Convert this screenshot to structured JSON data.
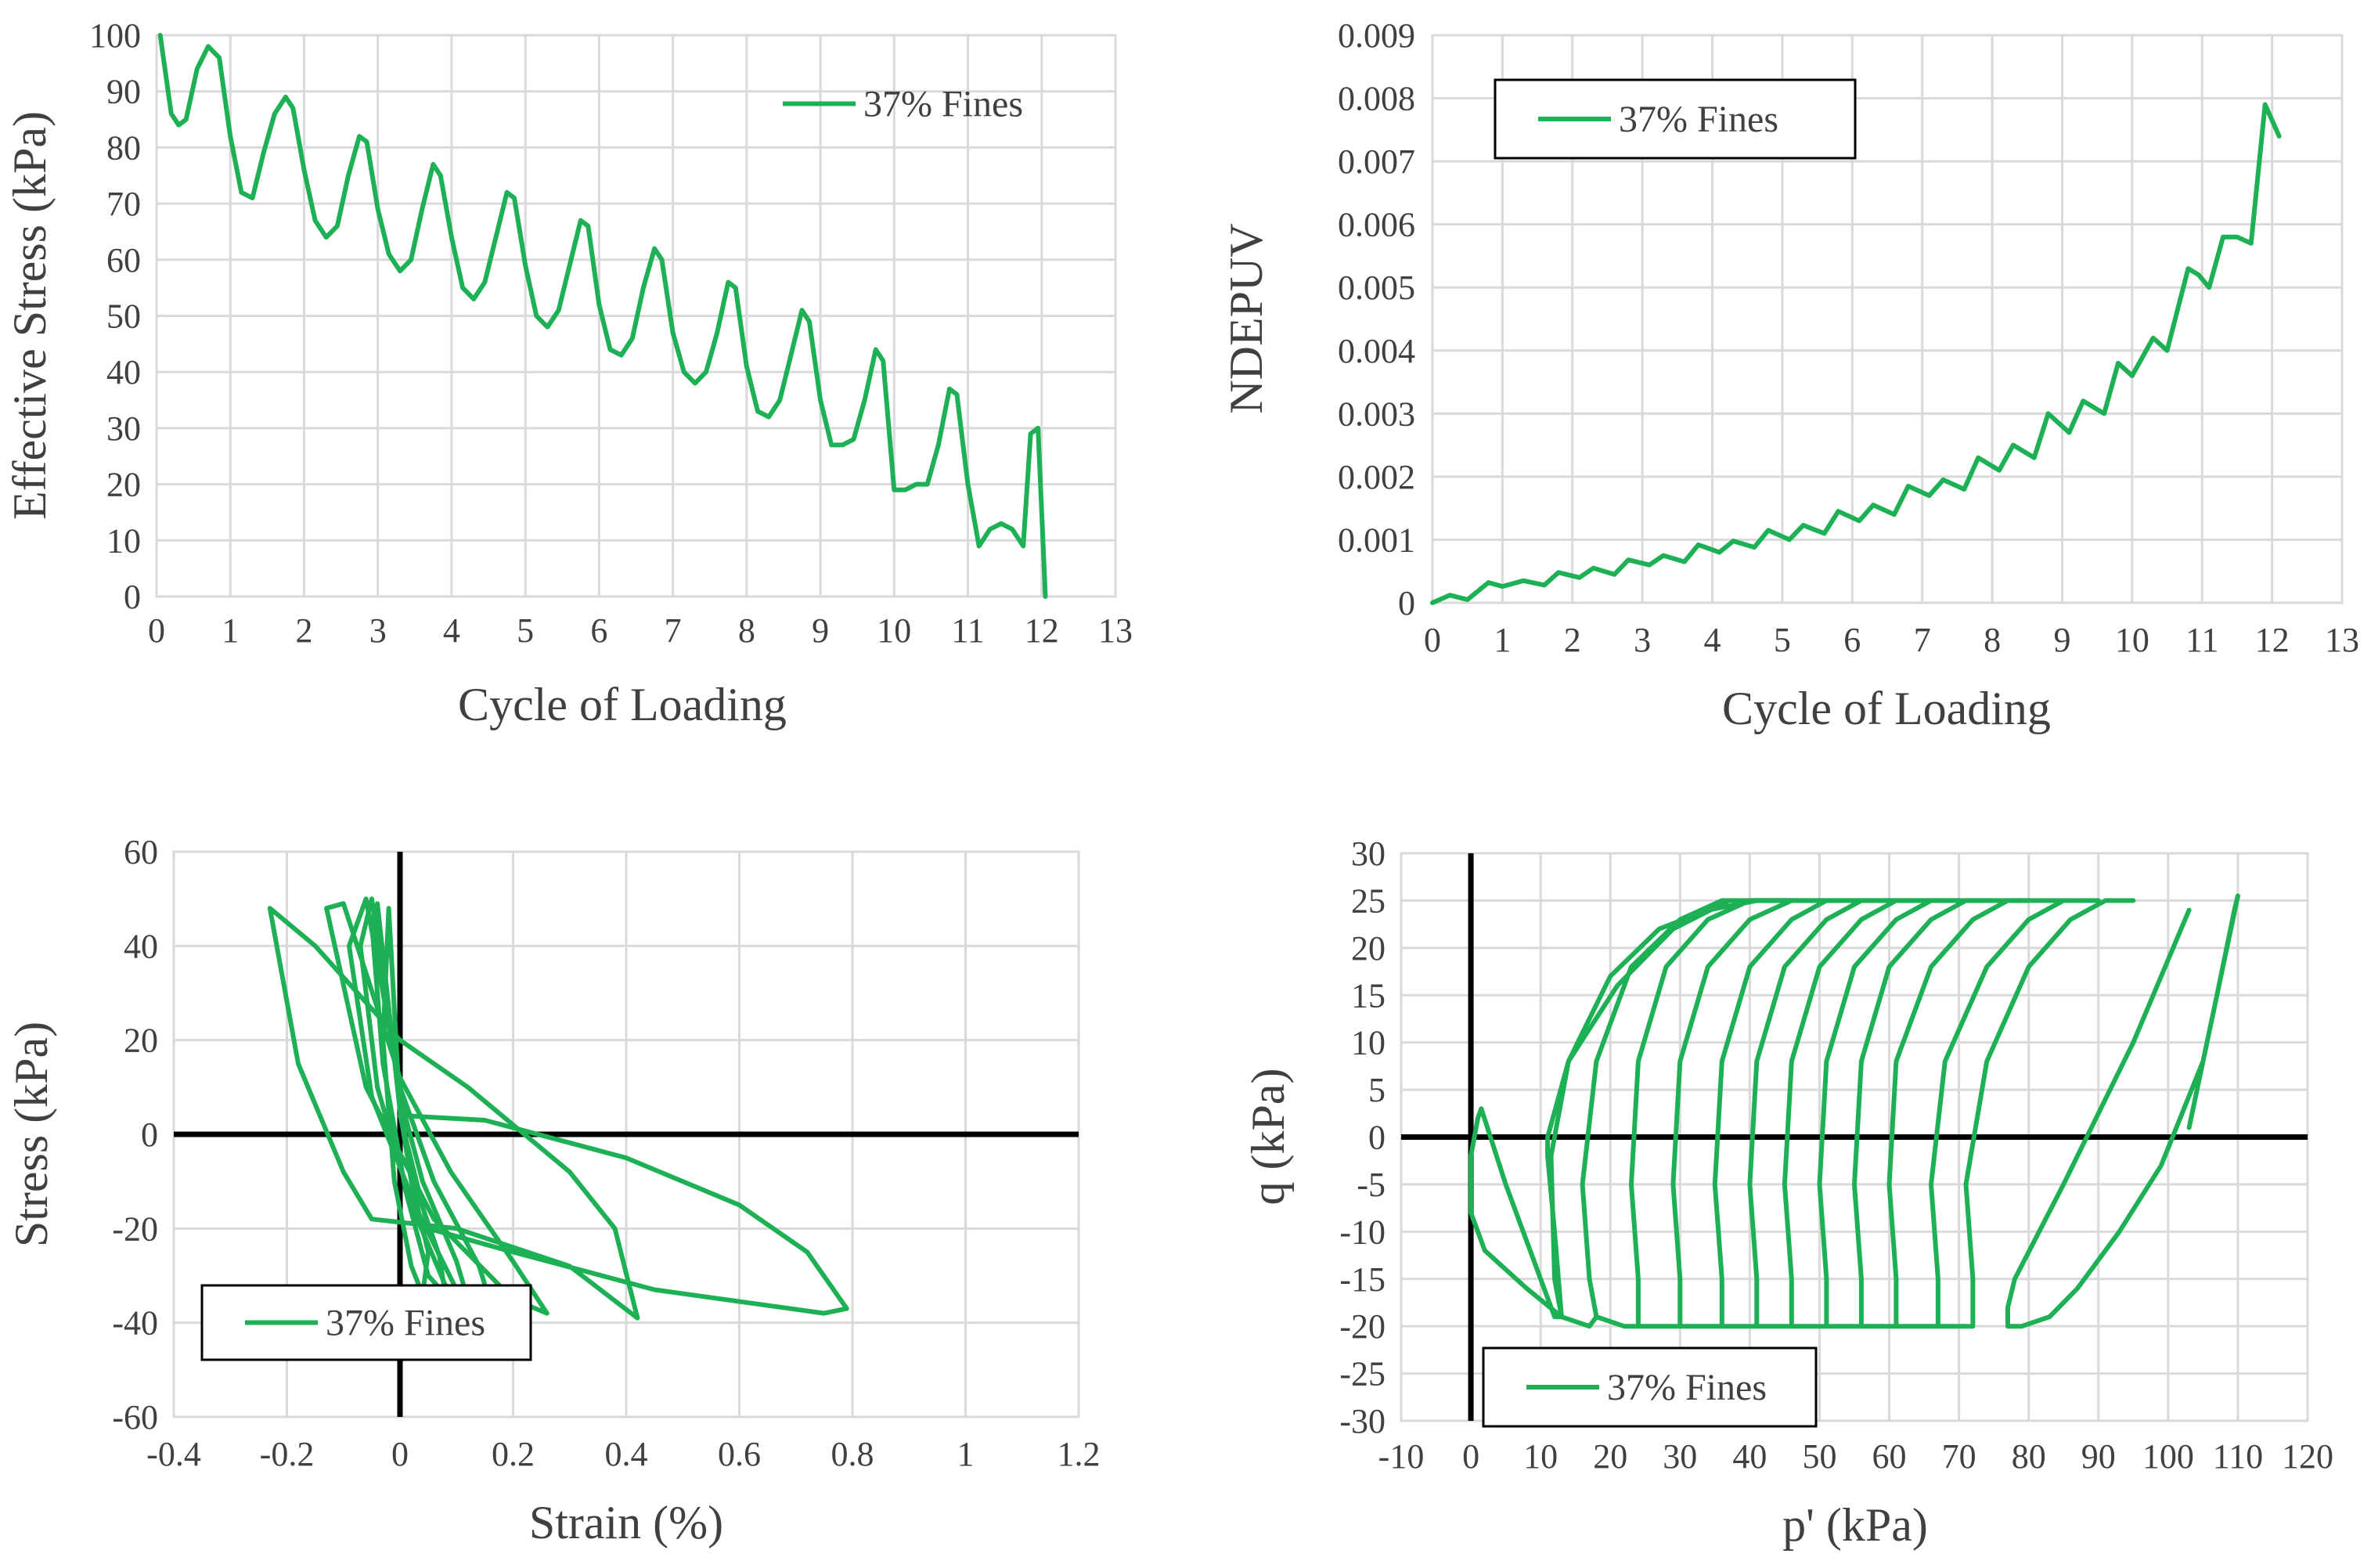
{
  "figure": {
    "legend_label": "37% Fines",
    "series_color": "#1DB055",
    "grid_color": "#D9D9D9",
    "axis_color": "#000000"
  },
  "chart_data": [
    {
      "id": "c1",
      "type": "line",
      "xlabel": "Cycle of Loading",
      "ylabel": "Effective Stress (kPa)",
      "xlim": [
        0,
        13
      ],
      "ylim": [
        0,
        100
      ],
      "xticks": [
        0,
        1,
        2,
        3,
        4,
        5,
        6,
        7,
        8,
        9,
        10,
        11,
        12,
        13
      ],
      "yticks": [
        0,
        10,
        20,
        30,
        40,
        50,
        60,
        70,
        80,
        90,
        100
      ],
      "grid_x": true,
      "grid_y": true,
      "legend": {
        "label": "37% Fines",
        "placement": "top-right",
        "boxed": false
      },
      "series": [
        {
          "name": "37% Fines",
          "x": [
            0.05,
            0.2,
            0.3,
            0.4,
            0.55,
            0.7,
            0.85,
            1.0,
            1.15,
            1.3,
            1.45,
            1.6,
            1.75,
            1.85,
            2.0,
            2.15,
            2.3,
            2.45,
            2.6,
            2.75,
            2.85,
            3.0,
            3.15,
            3.3,
            3.45,
            3.6,
            3.75,
            3.85,
            4.0,
            4.15,
            4.3,
            4.45,
            4.6,
            4.75,
            4.85,
            5.0,
            5.15,
            5.3,
            5.45,
            5.6,
            5.75,
            5.85,
            6.0,
            6.15,
            6.3,
            6.45,
            6.6,
            6.75,
            6.85,
            7.0,
            7.15,
            7.3,
            7.45,
            7.6,
            7.75,
            7.85,
            8.0,
            8.15,
            8.3,
            8.45,
            8.6,
            8.75,
            8.85,
            9.0,
            9.15,
            9.3,
            9.45,
            9.6,
            9.75,
            9.85,
            10.0,
            10.15,
            10.3,
            10.45,
            10.6,
            10.75,
            10.85,
            11.0,
            11.15,
            11.3,
            11.45,
            11.6,
            11.75,
            11.85,
            11.95,
            12.05
          ],
          "y": [
            100,
            86,
            84,
            85,
            94,
            98,
            96,
            82,
            72,
            71,
            79,
            86,
            89,
            87,
            76,
            67,
            64,
            66,
            75,
            82,
            81,
            69,
            61,
            58,
            60,
            69,
            77,
            75,
            64,
            55,
            53,
            56,
            64,
            72,
            71,
            59,
            50,
            48,
            51,
            59,
            67,
            66,
            52,
            44,
            43,
            46,
            55,
            62,
            60,
            47,
            40,
            38,
            40,
            47,
            56,
            55,
            41,
            33,
            32,
            35,
            43,
            51,
            49,
            35,
            27,
            27,
            28,
            35,
            44,
            42,
            19,
            19,
            20,
            20,
            27,
            37,
            36,
            20,
            9,
            12,
            13,
            12,
            9,
            29,
            30,
            0
          ]
        }
      ]
    },
    {
      "id": "c2",
      "type": "line",
      "xlabel": "Cycle of Loading",
      "ylabel": "NDEPUV",
      "xlim": [
        0,
        13
      ],
      "ylim": [
        0,
        0.009
      ],
      "xticks": [
        0,
        1,
        2,
        3,
        4,
        5,
        6,
        7,
        8,
        9,
        10,
        11,
        12,
        13
      ],
      "yticks": [
        "0",
        "0.001",
        "0.002",
        "0.003",
        "0.004",
        "0.005",
        "0.006",
        "0.007",
        "0.008",
        "0.009"
      ],
      "grid_x": true,
      "grid_y": true,
      "legend": {
        "label": "37% Fines",
        "placement": "top-left",
        "boxed": true
      },
      "series": [
        {
          "name": "37% Fines",
          "x": [
            0,
            0.25,
            0.5,
            0.8,
            1.0,
            1.3,
            1.6,
            1.8,
            2.1,
            2.3,
            2.6,
            2.8,
            3.1,
            3.3,
            3.6,
            3.8,
            4.1,
            4.3,
            4.6,
            4.8,
            5.1,
            5.3,
            5.6,
            5.8,
            6.1,
            6.3,
            6.6,
            6.8,
            7.1,
            7.3,
            7.6,
            7.8,
            8.1,
            8.3,
            8.6,
            8.8,
            9.1,
            9.3,
            9.6,
            9.8,
            10.0,
            10.3,
            10.5,
            10.8,
            10.95,
            11.1,
            11.3,
            11.5,
            11.7,
            11.9,
            12.1
          ],
          "y": [
            0,
            0.00012,
            5e-05,
            0.00032,
            0.00026,
            0.00035,
            0.00028,
            0.00048,
            0.0004,
            0.00055,
            0.00045,
            0.00068,
            0.0006,
            0.00075,
            0.00065,
            0.00092,
            0.0008,
            0.00098,
            0.00088,
            0.00115,
            0.001,
            0.00123,
            0.0011,
            0.00145,
            0.0013,
            0.00155,
            0.0014,
            0.00185,
            0.0017,
            0.00195,
            0.0018,
            0.0023,
            0.0021,
            0.0025,
            0.0023,
            0.003,
            0.0027,
            0.0032,
            0.003,
            0.0038,
            0.0036,
            0.0042,
            0.004,
            0.0053,
            0.0052,
            0.005,
            0.0058,
            0.0058,
            0.0057,
            0.0079,
            0.0074
          ]
        }
      ]
    },
    {
      "id": "c3",
      "type": "line",
      "xlabel": "Strain (%)",
      "ylabel": "Stress (kPa)",
      "xlim": [
        -0.4,
        1.2
      ],
      "ylim": [
        -60,
        60
      ],
      "xticks": [
        "-0.4",
        "-0.2",
        "0",
        "0.2",
        "0.4",
        "0.6",
        "0.8",
        "1",
        "1.2"
      ],
      "yticks": [
        "-60",
        "-40",
        "-20",
        "0",
        "20",
        "40",
        "60"
      ],
      "grid_x": true,
      "grid_y": true,
      "legend": {
        "label": "37% Fines",
        "placement": "bottom-left",
        "boxed": true
      },
      "series": [
        {
          "name": "37% Fines",
          "x": [
            0.0,
            0.02,
            0.05,
            0.04,
            0.02,
            -0.01,
            -0.03,
            -0.02,
            0.0
          ],
          "y": [
            5,
            -10,
            -25,
            -34,
            -28,
            -10,
            20,
            48,
            5
          ]
        },
        {
          "name": "37% Fines",
          "x": [
            0.0,
            0.03,
            0.07,
            0.08,
            0.05,
            0.01,
            -0.03,
            -0.05,
            -0.04,
            0.0
          ],
          "y": [
            5,
            -12,
            -26,
            -34,
            -30,
            -12,
            15,
            45,
            49,
            5
          ]
        },
        {
          "name": "37% Fines",
          "x": [
            0.0,
            0.04,
            0.1,
            0.12,
            0.08,
            0.02,
            -0.04,
            -0.07,
            -0.05,
            0.0
          ],
          "y": [
            8,
            -10,
            -27,
            -35,
            -32,
            -15,
            10,
            40,
            50,
            8
          ]
        },
        {
          "name": "37% Fines",
          "x": [
            0.0,
            0.06,
            0.14,
            0.16,
            0.1,
            0.03,
            -0.05,
            -0.09,
            -0.06,
            0.0
          ],
          "y": [
            10,
            -10,
            -28,
            -36,
            -33,
            -16,
            8,
            40,
            50,
            10
          ]
        },
        {
          "name": "37% Fines",
          "x": [
            0.0,
            0.09,
            0.2,
            0.26,
            0.2,
            0.06,
            -0.06,
            -0.13,
            -0.1,
            0.0
          ],
          "y": [
            12,
            -8,
            -27,
            -38,
            -35,
            -18,
            10,
            48,
            49,
            12
          ]
        },
        {
          "name": "37% Fines",
          "x": [
            0.0,
            0.12,
            0.3,
            0.38,
            0.42,
            0.3,
            0.1,
            -0.05,
            -0.1,
            -0.18,
            -0.23,
            -0.15,
            0.0
          ],
          "y": [
            20,
            10,
            -8,
            -20,
            -39,
            -28,
            -20,
            -18,
            -8,
            15,
            48,
            40,
            20
          ]
        },
        {
          "name": "37% Fines",
          "x": [
            0.0,
            0.15,
            0.4,
            0.6,
            0.72,
            0.79,
            0.75,
            0.45,
            0.2,
            0.05,
            0.0
          ],
          "y": [
            4,
            3,
            -5,
            -15,
            -25,
            -37,
            -38,
            -33,
            -25,
            -20,
            4
          ]
        }
      ]
    },
    {
      "id": "c4",
      "type": "line",
      "xlabel": "p' (kPa)",
      "ylabel": "q (kPa)",
      "xlim": [
        -10,
        120
      ],
      "ylim": [
        -30,
        30
      ],
      "xticks": [
        "-10",
        "0",
        "10",
        "20",
        "30",
        "40",
        "50",
        "60",
        "70",
        "80",
        "90",
        "100",
        "110",
        "120"
      ],
      "yticks": [
        "-30",
        "-25",
        "-20",
        "-15",
        "-10",
        "-5",
        "0",
        "5",
        "10",
        "15",
        "20",
        "25",
        "30"
      ],
      "grid_x": true,
      "grid_y": true,
      "legend": {
        "label": "37% Fines",
        "placement": "bottom-left",
        "boxed": true
      },
      "series": [
        {
          "name": "37% Fines",
          "x": [
            103,
            107,
            109.5,
            110,
            109,
            105,
            99,
            93,
            87,
            83,
            79,
            77,
            77,
            78,
            85,
            95,
            103
          ],
          "y": [
            1,
            15,
            24,
            25.5,
            22,
            8,
            -3,
            -10,
            -16,
            -19,
            -20,
            -20,
            -18,
            -15,
            -5,
            10,
            24
          ]
        },
        {
          "name": "37% Fines",
          "x": [
            0,
            1,
            1.5,
            5,
            10,
            12,
            13,
            12,
            11,
            11,
            14,
            21,
            29,
            37
          ],
          "y": [
            -2,
            2,
            3,
            -5,
            -15,
            -19,
            -19,
            -10,
            -2,
            0,
            8,
            16,
            22,
            25
          ]
        },
        {
          "name": "37% Fines",
          "x": [
            0,
            0,
            2,
            8,
            13,
            12,
            11.5,
            14,
            20,
            27,
            34,
            41,
            46
          ],
          "y": [
            -2,
            -8,
            -12,
            -16,
            -19,
            -15,
            -2,
            8,
            17,
            22,
            24,
            25,
            25
          ]
        },
        {
          "name": "37% Fines",
          "x": [
            13,
            17,
            18,
            17,
            16,
            18,
            23,
            30,
            36,
            42,
            46
          ],
          "y": [
            -19,
            -20,
            -19,
            -15,
            -5,
            8,
            18,
            23,
            25,
            25,
            25
          ]
        },
        {
          "name": "37% Fines",
          "x": [
            18,
            22,
            24,
            24,
            23,
            24,
            28,
            34,
            40,
            46,
            51
          ],
          "y": [
            -19,
            -20,
            -20,
            -15,
            -5,
            8,
            18,
            23,
            25,
            25,
            25
          ]
        },
        {
          "name": "37% Fines",
          "x": [
            24,
            28,
            30,
            30,
            29,
            30,
            34,
            40,
            46,
            51,
            56
          ],
          "y": [
            -20,
            -20,
            -20,
            -15,
            -5,
            8,
            18,
            23,
            25,
            25,
            25
          ]
        },
        {
          "name": "37% Fines",
          "x": [
            30,
            34,
            36,
            36,
            35,
            36,
            40,
            46,
            51,
            56,
            61
          ],
          "y": [
            -20,
            -20,
            -20,
            -15,
            -5,
            8,
            18,
            23,
            25,
            25,
            25
          ]
        },
        {
          "name": "37% Fines",
          "x": [
            36,
            40,
            41,
            41,
            40,
            41,
            45,
            51,
            56,
            61,
            66
          ],
          "y": [
            -20,
            -20,
            -20,
            -15,
            -5,
            8,
            18,
            23,
            25,
            25,
            25
          ]
        },
        {
          "name": "37% Fines",
          "x": [
            41,
            45,
            46,
            46,
            45,
            46,
            50,
            56,
            61,
            66,
            70
          ],
          "y": [
            -20,
            -20,
            -20,
            -15,
            -5,
            8,
            18,
            23,
            25,
            25,
            25
          ]
        },
        {
          "name": "37% Fines",
          "x": [
            46,
            50,
            51,
            51,
            50,
            51,
            55,
            61,
            66,
            71,
            75
          ],
          "y": [
            -20,
            -20,
            -20,
            -15,
            -5,
            8,
            18,
            23,
            25,
            25,
            25
          ]
        },
        {
          "name": "37% Fines",
          "x": [
            51,
            55,
            56,
            56,
            55,
            56,
            60,
            66,
            71,
            76,
            80
          ],
          "y": [
            -20,
            -20,
            -20,
            -15,
            -5,
            8,
            18,
            23,
            25,
            25,
            25
          ]
        },
        {
          "name": "37% Fines",
          "x": [
            56,
            60,
            61,
            61,
            60,
            61,
            66,
            72,
            77,
            82,
            85
          ],
          "y": [
            -20,
            -20,
            -20,
            -15,
            -5,
            8,
            18,
            23,
            25,
            25,
            25
          ]
        },
        {
          "name": "37% Fines",
          "x": [
            61,
            65,
            67,
            67,
            66,
            68,
            74,
            80,
            85,
            89,
            90
          ],
          "y": [
            -20,
            -20,
            -20,
            -15,
            -5,
            8,
            18,
            23,
            25,
            25,
            25
          ]
        },
        {
          "name": "37% Fines",
          "x": [
            67,
            71,
            72,
            72,
            71,
            74,
            80,
            86,
            91,
            94,
            95
          ],
          "y": [
            -20,
            -20,
            -20,
            -15,
            -5,
            8,
            18,
            23,
            25,
            25,
            25
          ]
        }
      ]
    }
  ]
}
